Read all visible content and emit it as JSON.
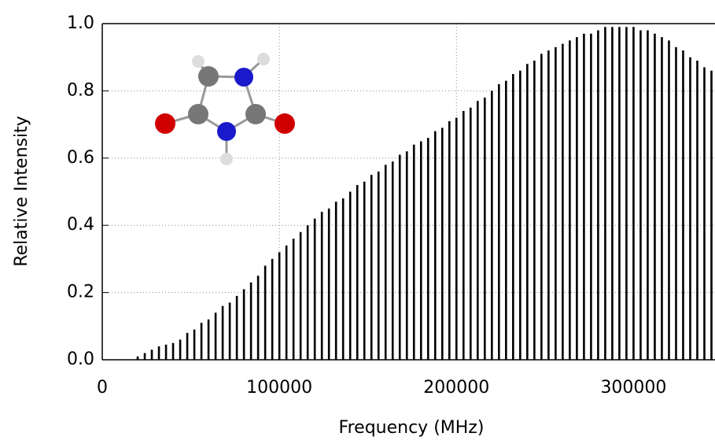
{
  "chart_data": {
    "type": "stick",
    "x_label": "Frequency (MHz)",
    "y_label": "Relative Intensity",
    "xlim": [
      0,
      346000
    ],
    "ylim": [
      0,
      1.0
    ],
    "xticks": [
      0,
      100000,
      200000,
      300000
    ],
    "yticks": [
      {
        "value": 0,
        "label": "0.0"
      },
      {
        "value": 0.2,
        "label": "0.2"
      },
      {
        "value": 0.4,
        "label": "0.4"
      },
      {
        "value": 0.6,
        "label": "0.6"
      },
      {
        "value": 0.8,
        "label": "0.8"
      },
      {
        "value": 1.0,
        "label": "1.0"
      }
    ],
    "grid": true,
    "color": "#000000",
    "x": [
      20000,
      24000,
      28000,
      32000,
      36000,
      40000,
      44000,
      48000,
      52000,
      56000,
      60000,
      64000,
      68000,
      72000,
      76000,
      80000,
      84000,
      88000,
      92000,
      96000,
      100000,
      104000,
      108000,
      112000,
      116000,
      120000,
      124000,
      128000,
      132000,
      136000,
      140000,
      144000,
      148000,
      152000,
      156000,
      160000,
      164000,
      168000,
      172000,
      176000,
      180000,
      184000,
      188000,
      192000,
      196000,
      200000,
      204000,
      208000,
      212000,
      216000,
      220000,
      224000,
      228000,
      232000,
      236000,
      240000,
      244000,
      248000,
      252000,
      256000,
      260000,
      264000,
      268000,
      272000,
      276000,
      280000,
      284000,
      288000,
      292000,
      296000,
      300000,
      304000,
      308000,
      312000,
      316000,
      320000,
      324000,
      328000,
      332000,
      336000,
      340000,
      344000
    ],
    "values": [
      0.01,
      0.02,
      0.03,
      0.04,
      0.045,
      0.05,
      0.06,
      0.08,
      0.09,
      0.11,
      0.12,
      0.14,
      0.16,
      0.17,
      0.19,
      0.21,
      0.23,
      0.25,
      0.28,
      0.3,
      0.32,
      0.34,
      0.36,
      0.38,
      0.4,
      0.42,
      0.44,
      0.45,
      0.47,
      0.48,
      0.5,
      0.52,
      0.53,
      0.55,
      0.56,
      0.58,
      0.59,
      0.61,
      0.62,
      0.64,
      0.65,
      0.66,
      0.68,
      0.69,
      0.71,
      0.72,
      0.74,
      0.75,
      0.77,
      0.78,
      0.8,
      0.82,
      0.83,
      0.85,
      0.86,
      0.88,
      0.89,
      0.91,
      0.92,
      0.93,
      0.94,
      0.95,
      0.96,
      0.97,
      0.97,
      0.98,
      0.99,
      0.99,
      0.99,
      0.99,
      0.99,
      0.98,
      0.98,
      0.97,
      0.96,
      0.95,
      0.93,
      0.92,
      0.9,
      0.89,
      0.87,
      0.86
    ]
  }
}
